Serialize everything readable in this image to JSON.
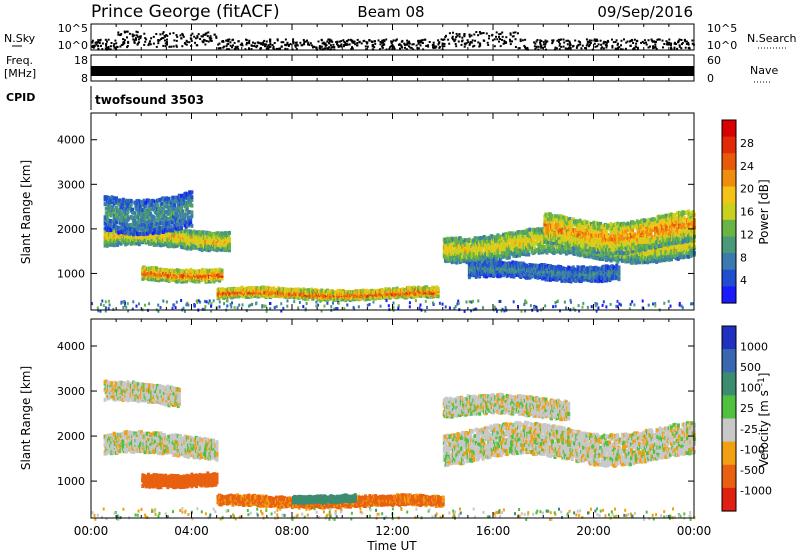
{
  "header": {
    "station": "Prince George (fitACF)",
    "beam": "Beam 08",
    "date": "09/Sep/2016"
  },
  "strips": {
    "nsky": {
      "label": "N.Sky",
      "tick_top": "10^5",
      "tick_bottom": "10^0"
    },
    "nsearch": {
      "label": "N.Search",
      "tick_top": "10^5",
      "tick_bottom": "10^0"
    },
    "freq": {
      "label_top": "Freq.",
      "label_unit": "[MHz]",
      "tick_top": "18",
      "tick_bottom": "8"
    },
    "nave": {
      "label": "Nave",
      "tick_top": "60",
      "tick_bottom": "0"
    },
    "cpid": {
      "label": "CPID",
      "value": "twofsound 3503"
    }
  },
  "chart_data": [
    {
      "type": "heatmap",
      "name": "power-panel",
      "ylabel": "Slant Range [km]",
      "ylim": [
        180,
        4600
      ],
      "yticks": [
        "1000",
        "2000",
        "3000",
        "4000"
      ],
      "colorbar": {
        "label": "Power [dB]",
        "range": [
          0,
          32
        ],
        "ticks": [
          "4",
          "8",
          "12",
          "16",
          "20",
          "24",
          "28"
        ],
        "colors": [
          "#1a1aff",
          "#1f4fd0",
          "#3a7ab0",
          "#4a9a78",
          "#6ab445",
          "#c8d21e",
          "#f5c318",
          "#f08c0e",
          "#e85a0a",
          "#e02a08",
          "#d80000"
        ]
      },
      "echo_regions": [
        {
          "t0": 0.5,
          "t1": 5.5,
          "r_center": 1850,
          "r_half": 200,
          "value": 20
        },
        {
          "t0": 2.0,
          "t1": 5.2,
          "r_center": 1050,
          "r_half": 120,
          "value": 26
        },
        {
          "t0": 5.0,
          "t1": 13.8,
          "r_center": 600,
          "r_half": 90,
          "value": 27
        },
        {
          "t0": 0.5,
          "t1": 4.0,
          "r_center": 2500,
          "r_half": 400,
          "value": 10
        },
        {
          "t0": 14.0,
          "t1": 24.0,
          "r_center": 1700,
          "r_half": 280,
          "value": 19
        },
        {
          "t0": 18.0,
          "t1": 24.0,
          "r_center": 2000,
          "r_half": 350,
          "value": 23
        },
        {
          "t0": 15.0,
          "t1": 21.0,
          "r_center": 1100,
          "r_half": 150,
          "value": 9
        }
      ]
    },
    {
      "type": "heatmap",
      "name": "velocity-panel",
      "ylabel": "Slant Range [km]",
      "ylim": [
        180,
        4600
      ],
      "yticks": [
        "1000",
        "2000",
        "3000",
        "4000"
      ],
      "colorbar": {
        "label": "Velocity [m s^-1]",
        "range": [
          -1250,
          1250
        ],
        "ticks": [
          "1000",
          "500",
          "100",
          "25",
          "-25",
          "-100",
          "-500",
          "-1000"
        ],
        "colors": [
          "#2030c0",
          "#3a68b0",
          "#3c8c70",
          "#50c040",
          "#c8c8c8",
          "#f0a010",
          "#e86010",
          "#e02010"
        ]
      },
      "echo_regions": [
        {
          "t0": 0.5,
          "t1": 5.0,
          "r_center": 1850,
          "r_half": 220,
          "value": 0
        },
        {
          "t0": 0.5,
          "t1": 3.5,
          "r_center": 3000,
          "r_half": 200,
          "value": 0
        },
        {
          "t0": 2.0,
          "t1": 5.0,
          "r_center": 1100,
          "r_half": 120,
          "value": -300
        },
        {
          "t0": 5.0,
          "t1": 14.0,
          "r_center": 600,
          "r_half": 90,
          "value": -120
        },
        {
          "t0": 8.0,
          "t1": 10.5,
          "r_center": 650,
          "r_half": 50,
          "value": 200
        },
        {
          "t0": 14.0,
          "t1": 24.0,
          "r_center": 1900,
          "r_half": 350,
          "value": 0
        },
        {
          "t0": 14.0,
          "t1": 19.0,
          "r_center": 2700,
          "r_half": 200,
          "value": 0
        }
      ]
    }
  ],
  "xaxis": {
    "label": "Time UT",
    "ticks": [
      "00:00",
      "04:00",
      "08:00",
      "12:00",
      "16:00",
      "20:00",
      "00:00"
    ],
    "range_hours": [
      0,
      24
    ]
  },
  "colors": {
    "frame": "#000000",
    "background": "#ffffff",
    "data": "#000000"
  }
}
